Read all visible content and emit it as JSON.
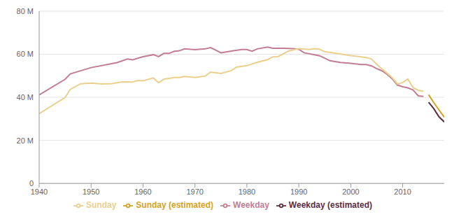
{
  "chart_data": {
    "type": "line",
    "xlim": [
      1940,
      2018
    ],
    "xticks": [
      1940,
      1950,
      1960,
      1970,
      1980,
      1990,
      2000,
      2010
    ],
    "ylim": [
      0,
      80000000
    ],
    "yticks": [
      0,
      {
        "value": 20000000,
        "label": "20 M"
      },
      {
        "value": 40000000,
        "label": "40 M"
      },
      {
        "value": 60000000,
        "label": "60 M"
      },
      {
        "value": 80000000,
        "label": "80 M"
      }
    ],
    "grid": true,
    "legend": "bottom",
    "series": [
      {
        "name": "Weekday",
        "color": "#c27d92",
        "x": [
          1940,
          1945,
          1946,
          1950,
          1955,
          1957,
          1958,
          1960,
          1962,
          1963,
          1964,
          1965,
          1966,
          1967,
          1968,
          1970,
          1972,
          1973,
          1974,
          1975,
          1977,
          1979,
          1980,
          1981,
          1982,
          1984,
          1985,
          1987,
          1988,
          1989,
          1990,
          1991,
          1993,
          1994,
          1995,
          1996,
          1998,
          2000,
          2002,
          2003,
          2004,
          2005,
          2006,
          2007,
          2008,
          2009,
          2010,
          2011,
          2012,
          2013,
          2014
        ],
        "values": [
          41100000,
          48400000,
          50900000,
          53800000,
          56100000,
          57800000,
          57400000,
          58900000,
          59800000,
          58900000,
          60400000,
          60400000,
          61400000,
          61600000,
          62500000,
          62100000,
          62500000,
          63100000,
          61900000,
          60700000,
          61500000,
          62200000,
          62200000,
          61400000,
          62500000,
          63300000,
          62800000,
          62800000,
          62700000,
          62600000,
          62300000,
          60700000,
          59800000,
          59300000,
          58200000,
          57000000,
          56200000,
          55800000,
          55200000,
          55200000,
          54600000,
          53300000,
          52300000,
          50700000,
          48600000,
          45700000,
          44900000,
          44400000,
          43400000,
          40700000,
          40400000
        ]
      },
      {
        "name": "Sunday",
        "color": "#ead08c",
        "x": [
          1940,
          1945,
          1946,
          1948,
          1950,
          1952,
          1954,
          1956,
          1958,
          1959,
          1960,
          1962,
          1963,
          1964,
          1966,
          1967,
          1968,
          1970,
          1972,
          1973,
          1975,
          1977,
          1978,
          1980,
          1982,
          1984,
          1985,
          1986,
          1988,
          1990,
          1992,
          1993,
          1994,
          1995,
          1997,
          2000,
          2002,
          2003,
          2004,
          2005,
          2006,
          2007,
          2008,
          2009,
          2010,
          2011,
          2012,
          2013,
          2014
        ],
        "values": [
          32400000,
          39900000,
          43700000,
          46300000,
          46600000,
          46200000,
          46400000,
          47200000,
          47100000,
          47800000,
          47700000,
          49000000,
          46800000,
          48400000,
          49200000,
          49200000,
          49700000,
          49200000,
          49900000,
          51700000,
          51100000,
          52400000,
          54000000,
          54700000,
          56300000,
          57500000,
          58800000,
          58900000,
          61500000,
          62600000,
          62200000,
          62600000,
          62300000,
          61200000,
          60500000,
          59400000,
          58800000,
          58500000,
          57800000,
          55300000,
          53200000,
          51200000,
          49100000,
          46200000,
          46900000,
          48500000,
          44500000,
          43300000,
          42800000
        ]
      },
      {
        "name": "Weekday (estimated)",
        "color": "#5e2b3c",
        "x": [
          2015,
          2016,
          2017,
          2018
        ],
        "values": [
          37700000,
          34700000,
          30900000,
          28600000
        ]
      },
      {
        "name": "Sunday (estimated)",
        "color": "#d4a223",
        "x": [
          2015,
          2016,
          2017,
          2018
        ],
        "values": [
          41200000,
          37500000,
          34100000,
          30800000
        ]
      }
    ]
  }
}
